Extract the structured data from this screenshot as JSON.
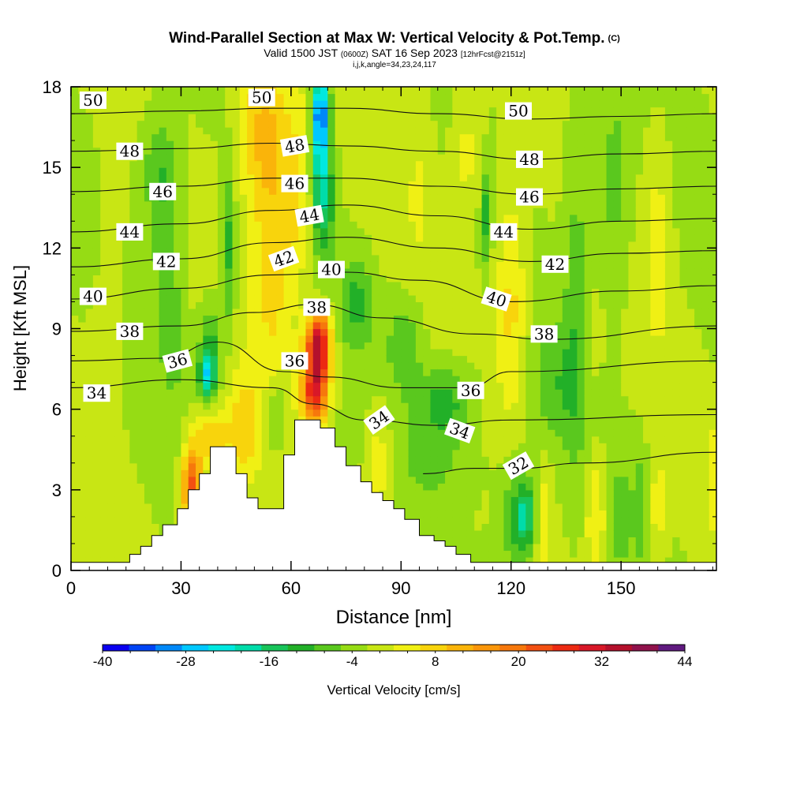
{
  "header": {
    "title": "Wind-Parallel Section at Max W: Vertical Velocity & Pot.Temp.",
    "copyright": "(C)",
    "valid_prefix": "Valid 1500 JST",
    "valid_utc": "(0600Z)",
    "valid_date": "SAT 16 Sep 2023",
    "forecast": "[12hrFcst@2151z]",
    "grid_info": "i,j,k,angle=34,23,24,117"
  },
  "chart_data": {
    "type": "heatmap",
    "xlabel": "Distance [nm]",
    "ylabel": "Height [Kft MSL]",
    "xlim": [
      0,
      176
    ],
    "ylim": [
      0,
      18
    ],
    "x_ticks": [
      0,
      30,
      60,
      90,
      120,
      150
    ],
    "y_ticks": [
      0,
      3,
      6,
      9,
      12,
      15,
      18
    ],
    "colorbar": {
      "label": "Vertical Velocity [cm/s]",
      "min": -40,
      "max": 44,
      "step": 4,
      "tick_labels": [
        "-40",
        "-28",
        "-16",
        "-4",
        "8",
        "20",
        "32",
        "44"
      ],
      "colors": [
        "#0a00f0",
        "#0044f5",
        "#0088f8",
        "#00c8ff",
        "#00e8e0",
        "#00dcaa",
        "#18c45a",
        "#22b028",
        "#5ac81e",
        "#96dc14",
        "#c8e614",
        "#f0f014",
        "#f8d40c",
        "#fab40a",
        "#fa960a",
        "#f6780c",
        "#f25012",
        "#ec2a12",
        "#d81828",
        "#b4102c",
        "#90124c",
        "#601a80"
      ]
    },
    "terrain_profile": [
      [
        0,
        0.3
      ],
      [
        16,
        0.3
      ],
      [
        16,
        0.6
      ],
      [
        19,
        0.6
      ],
      [
        19,
        0.9
      ],
      [
        22,
        0.9
      ],
      [
        22,
        1.3
      ],
      [
        25,
        1.3
      ],
      [
        25,
        1.7
      ],
      [
        29,
        1.7
      ],
      [
        29,
        2.3
      ],
      [
        32,
        2.3
      ],
      [
        32,
        3.0
      ],
      [
        35,
        3.0
      ],
      [
        35,
        3.6
      ],
      [
        38,
        3.6
      ],
      [
        38,
        4.6
      ],
      [
        45,
        4.6
      ],
      [
        45,
        3.6
      ],
      [
        48,
        3.6
      ],
      [
        48,
        2.7
      ],
      [
        51,
        2.7
      ],
      [
        51,
        2.3
      ],
      [
        58,
        2.3
      ],
      [
        58,
        4.3
      ],
      [
        61,
        4.3
      ],
      [
        61,
        5.6
      ],
      [
        68,
        5.6
      ],
      [
        68,
        5.3
      ],
      [
        72,
        5.3
      ],
      [
        72,
        4.6
      ],
      [
        75,
        4.6
      ],
      [
        75,
        3.9
      ],
      [
        79,
        3.9
      ],
      [
        79,
        3.3
      ],
      [
        82,
        3.3
      ],
      [
        82,
        2.9
      ],
      [
        85,
        2.9
      ],
      [
        85,
        2.6
      ],
      [
        88,
        2.6
      ],
      [
        88,
        2.3
      ],
      [
        91,
        2.3
      ],
      [
        91,
        1.9
      ],
      [
        95,
        1.9
      ],
      [
        95,
        1.3
      ],
      [
        99,
        1.3
      ],
      [
        99,
        1.1
      ],
      [
        102,
        1.1
      ],
      [
        102,
        0.9
      ],
      [
        105,
        0.9
      ],
      [
        105,
        0.6
      ],
      [
        109,
        0.6
      ],
      [
        109,
        0.3
      ],
      [
        112,
        0.3
      ],
      [
        112,
        0.3
      ],
      [
        176,
        0.3
      ]
    ],
    "w_features": [
      {
        "x": 67,
        "y": 7.6,
        "sx": 2.5,
        "sy": 1.1,
        "w": 34
      },
      {
        "x": 68,
        "y": 8.8,
        "sx": 2.2,
        "sy": 0.7,
        "w": 18
      },
      {
        "x": 66,
        "y": 6.3,
        "sx": 2.5,
        "sy": 0.6,
        "w": 14
      },
      {
        "x": 33,
        "y": 3.1,
        "sx": 1.8,
        "sy": 1.0,
        "w": 28
      },
      {
        "x": 38,
        "y": 5.0,
        "sx": 3.5,
        "sy": 0.8,
        "w": 12
      },
      {
        "x": 47,
        "y": 5.2,
        "sx": 3.0,
        "sy": 1.6,
        "w": 10
      },
      {
        "x": 52,
        "y": 16.5,
        "sx": 5.0,
        "sy": 2.2,
        "w": 12
      },
      {
        "x": 55,
        "y": 11.5,
        "sx": 4.0,
        "sy": 3.5,
        "w": 10
      },
      {
        "x": 62,
        "y": 14.0,
        "sx": 3.0,
        "sy": 2.5,
        "w": 8
      },
      {
        "x": 68,
        "y": 17.2,
        "sx": 1.6,
        "sy": 1.0,
        "w": -26
      },
      {
        "x": 68,
        "y": 15.5,
        "sx": 1.8,
        "sy": 1.6,
        "w": -16
      },
      {
        "x": 69,
        "y": 13.5,
        "sx": 2.2,
        "sy": 1.5,
        "w": -10
      },
      {
        "x": 78,
        "y": 10.0,
        "sx": 3.2,
        "sy": 1.2,
        "w": -9
      },
      {
        "x": 91,
        "y": 8.5,
        "sx": 3.5,
        "sy": 1.2,
        "w": -8
      },
      {
        "x": 102,
        "y": 6.4,
        "sx": 5.0,
        "sy": 0.9,
        "w": -9
      },
      {
        "x": 43,
        "y": 12.0,
        "sx": 1.3,
        "sy": 2.2,
        "w": -10
      },
      {
        "x": 38,
        "y": 8.0,
        "sx": 2.0,
        "sy": 1.2,
        "w": -12
      },
      {
        "x": 37,
        "y": 7.2,
        "sx": 1.5,
        "sy": 0.6,
        "w": -16
      },
      {
        "x": 56,
        "y": 5.8,
        "sx": 2.0,
        "sy": 1.0,
        "w": -8
      },
      {
        "x": 24,
        "y": 15.0,
        "sx": 3.5,
        "sy": 1.5,
        "w": -8
      },
      {
        "x": 26,
        "y": 12.0,
        "sx": 3.0,
        "sy": 2.0,
        "w": -6
      },
      {
        "x": 113,
        "y": 13.2,
        "sx": 1.0,
        "sy": 1.2,
        "w": -10
      },
      {
        "x": 120,
        "y": 10.0,
        "sx": 3.0,
        "sy": 3.0,
        "w": 10
      },
      {
        "x": 108,
        "y": 15.5,
        "sx": 3.0,
        "sy": 2.5,
        "w": 6
      },
      {
        "x": 95,
        "y": 14.5,
        "sx": 3.0,
        "sy": 2.5,
        "w": 4
      },
      {
        "x": 138,
        "y": 11.0,
        "sx": 2.5,
        "sy": 5.0,
        "w": -6
      },
      {
        "x": 148,
        "y": 14.0,
        "sx": 3.0,
        "sy": 3.0,
        "w": -6
      },
      {
        "x": 160,
        "y": 12.5,
        "sx": 2.5,
        "sy": 3.0,
        "w": 6
      },
      {
        "x": 133,
        "y": 7.0,
        "sx": 5.0,
        "sy": 1.6,
        "w": -6
      },
      {
        "x": 124,
        "y": 2.0,
        "sx": 2.0,
        "sy": 0.9,
        "w": -14
      },
      {
        "x": 121,
        "y": 2.0,
        "sx": 3.5,
        "sy": 1.6,
        "w": -8
      },
      {
        "x": 129,
        "y": 2.0,
        "sx": 1.6,
        "sy": 1.5,
        "w": 6
      },
      {
        "x": 143,
        "y": 2.0,
        "sx": 2.0,
        "sy": 1.8,
        "w": 9
      },
      {
        "x": 150,
        "y": 2.0,
        "sx": 1.4,
        "sy": 1.2,
        "w": -8
      },
      {
        "x": 155,
        "y": 2.5,
        "sx": 1.5,
        "sy": 1.5,
        "w": -6
      },
      {
        "x": 160,
        "y": 2.3,
        "sx": 2.0,
        "sy": 1.5,
        "w": 6
      },
      {
        "x": 176,
        "y": 3.5,
        "sx": 1.5,
        "sy": 1.5,
        "w": 8
      },
      {
        "x": 100,
        "y": 4.5,
        "sx": 8.0,
        "sy": 1.5,
        "w": -5
      },
      {
        "x": 84,
        "y": 4.0,
        "sx": 2.5,
        "sy": 1.5,
        "w": 8
      },
      {
        "x": 28,
        "y": 8.5,
        "sx": 2.5,
        "sy": 1.5,
        "w": -5
      },
      {
        "x": 142,
        "y": 8.5,
        "sx": 2.0,
        "sy": 1.2,
        "w": 4
      },
      {
        "x": 10,
        "y": 10.0,
        "sx": 4.0,
        "sy": 3.5,
        "w": 2
      }
    ],
    "theta_contours": [
      {
        "label": "34",
        "points": [
          [
            0,
            6.8
          ],
          [
            30,
            7.1
          ],
          [
            55,
            6.8
          ],
          [
            66,
            6.2
          ],
          [
            80,
            5.6
          ],
          [
            100,
            5.4
          ],
          [
            120,
            5.6
          ],
          [
            176,
            5.8
          ]
        ]
      },
      {
        "label": "36",
        "points": [
          [
            0,
            7.8
          ],
          [
            25,
            7.9
          ],
          [
            40,
            8.5
          ],
          [
            58,
            7.4
          ],
          [
            70,
            7.2
          ],
          [
            90,
            6.8
          ],
          [
            108,
            6.8
          ],
          [
            120,
            7.4
          ],
          [
            176,
            7.8
          ]
        ]
      },
      {
        "label": "38",
        "points": [
          [
            0,
            8.9
          ],
          [
            30,
            9.1
          ],
          [
            50,
            9.6
          ],
          [
            66,
            9.9
          ],
          [
            85,
            9.4
          ],
          [
            110,
            8.8
          ],
          [
            130,
            8.6
          ],
          [
            176,
            9.1
          ]
        ]
      },
      {
        "label": "40",
        "points": [
          [
            0,
            10.1
          ],
          [
            30,
            10.5
          ],
          [
            55,
            11.0
          ],
          [
            75,
            11.1
          ],
          [
            95,
            10.8
          ],
          [
            120,
            10.0
          ],
          [
            150,
            10.4
          ],
          [
            176,
            10.6
          ]
        ]
      },
      {
        "label": "42",
        "points": [
          [
            0,
            11.3
          ],
          [
            30,
            11.6
          ],
          [
            55,
            12.2
          ],
          [
            75,
            12.4
          ],
          [
            100,
            12.0
          ],
          [
            125,
            11.5
          ],
          [
            150,
            11.8
          ],
          [
            176,
            11.9
          ]
        ]
      },
      {
        "label": "44",
        "points": [
          [
            0,
            12.6
          ],
          [
            30,
            12.9
          ],
          [
            55,
            13.4
          ],
          [
            75,
            13.6
          ],
          [
            100,
            13.2
          ],
          [
            125,
            12.7
          ],
          [
            150,
            13.0
          ],
          [
            176,
            13.1
          ]
        ]
      },
      {
        "label": "46",
        "points": [
          [
            0,
            14.1
          ],
          [
            30,
            14.3
          ],
          [
            55,
            14.6
          ],
          [
            75,
            14.6
          ],
          [
            100,
            14.3
          ],
          [
            125,
            14.0
          ],
          [
            150,
            14.2
          ],
          [
            176,
            14.3
          ]
        ]
      },
      {
        "label": "48",
        "points": [
          [
            0,
            15.6
          ],
          [
            30,
            15.7
          ],
          [
            55,
            15.9
          ],
          [
            75,
            15.8
          ],
          [
            100,
            15.6
          ],
          [
            125,
            15.3
          ],
          [
            150,
            15.5
          ],
          [
            176,
            15.6
          ]
        ]
      },
      {
        "label": "50",
        "points": [
          [
            0,
            17.0
          ],
          [
            30,
            17.1
          ],
          [
            55,
            17.2
          ],
          [
            75,
            17.2
          ],
          [
            100,
            17.0
          ],
          [
            125,
            16.8
          ],
          [
            150,
            16.9
          ],
          [
            176,
            17.0
          ]
        ]
      },
      {
        "label": "32",
        "points": [
          [
            96,
            3.6
          ],
          [
            110,
            3.8
          ],
          [
            122,
            3.8
          ],
          [
            140,
            4.0
          ],
          [
            176,
            4.4
          ]
        ]
      }
    ],
    "theta_labels": [
      {
        "text": "50",
        "x": 6,
        "y": 17.5,
        "angle": 0
      },
      {
        "text": "50",
        "x": 52,
        "y": 17.6,
        "angle": 0
      },
      {
        "text": "50",
        "x": 122,
        "y": 17.1,
        "angle": 0
      },
      {
        "text": "48",
        "x": 16,
        "y": 15.6,
        "angle": 0
      },
      {
        "text": "48",
        "x": 61,
        "y": 15.8,
        "angle": -10
      },
      {
        "text": "48",
        "x": 125,
        "y": 15.3,
        "angle": 0
      },
      {
        "text": "46",
        "x": 25,
        "y": 14.1,
        "angle": 0
      },
      {
        "text": "46",
        "x": 61,
        "y": 14.4,
        "angle": 0
      },
      {
        "text": "46",
        "x": 125,
        "y": 13.9,
        "angle": 0
      },
      {
        "text": "44",
        "x": 16,
        "y": 12.6,
        "angle": 0
      },
      {
        "text": "44",
        "x": 65,
        "y": 13.2,
        "angle": -10
      },
      {
        "text": "44",
        "x": 118,
        "y": 12.6,
        "angle": 0
      },
      {
        "text": "42",
        "x": 26,
        "y": 11.5,
        "angle": 0
      },
      {
        "text": "42",
        "x": 58,
        "y": 11.6,
        "angle": -20
      },
      {
        "text": "42",
        "x": 132,
        "y": 11.4,
        "angle": 0
      },
      {
        "text": "40",
        "x": 6,
        "y": 10.2,
        "angle": 0
      },
      {
        "text": "40",
        "x": 71,
        "y": 11.2,
        "angle": 0
      },
      {
        "text": "40",
        "x": 116,
        "y": 10.1,
        "angle": 18
      },
      {
        "text": "38",
        "x": 16,
        "y": 8.9,
        "angle": 0
      },
      {
        "text": "38",
        "x": 67,
        "y": 9.8,
        "angle": 0
      },
      {
        "text": "38",
        "x": 129,
        "y": 8.8,
        "angle": 0
      },
      {
        "text": "36",
        "x": 29,
        "y": 7.8,
        "angle": -15
      },
      {
        "text": "36",
        "x": 61,
        "y": 7.8,
        "angle": 0
      },
      {
        "text": "36",
        "x": 109,
        "y": 6.7,
        "angle": 0
      },
      {
        "text": "34",
        "x": 7,
        "y": 6.6,
        "angle": 0
      },
      {
        "text": "34",
        "x": 84,
        "y": 5.6,
        "angle": -35
      },
      {
        "text": "34",
        "x": 106,
        "y": 5.2,
        "angle": 20
      },
      {
        "text": "32",
        "x": 122,
        "y": 3.9,
        "angle": -30
      }
    ]
  }
}
